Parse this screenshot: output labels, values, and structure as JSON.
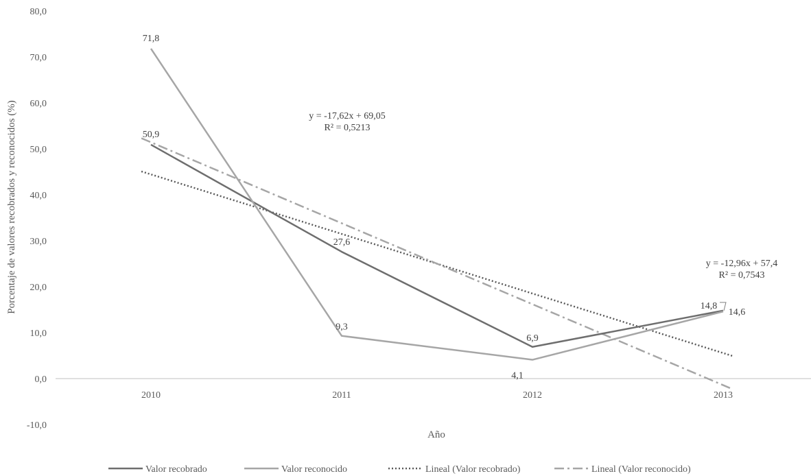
{
  "chart_data": {
    "type": "line",
    "title": "",
    "xlabel": "Año",
    "ylabel": "Porcentaje de valores recobrados y reconocidos (%)",
    "categories": [
      "2010",
      "2011",
      "2012",
      "2013"
    ],
    "ylim": [
      -10,
      80
    ],
    "ytick_step": 10,
    "ytick_labels": [
      "-10,0",
      "0,0",
      "10,0",
      "20,0",
      "30,0",
      "40,0",
      "50,0",
      "60,0",
      "70,0",
      "80,0"
    ],
    "grid": false,
    "legend_position": "bottom",
    "series": [
      {
        "name": "Valor recobrado",
        "values": [
          50.9,
          27.6,
          6.9,
          14.8
        ],
        "labels": [
          "50,9",
          "27,6",
          "6,9",
          "14,8"
        ],
        "color": "#6e6e6e",
        "style": "solid"
      },
      {
        "name": "Valor reconocido",
        "values": [
          71.8,
          9.3,
          4.1,
          14.6
        ],
        "labels": [
          "71,8",
          "9,3",
          "4,1",
          "14,6"
        ],
        "color": "#a6a6a6",
        "style": "solid"
      }
    ],
    "trendlines": [
      {
        "name": "Lineal (Valor recobrado)",
        "slope": -12.96,
        "intercept": 57.4,
        "equation": "y = -12,96x + 57,4",
        "r2": "R² = 0,7543",
        "color": "#595959",
        "style": "dotted"
      },
      {
        "name": "Lineal (Valor reconocido)",
        "slope": -17.62,
        "intercept": 69.05,
        "equation": "y = -17,62x + 69,05",
        "r2": "R² = 0,5213",
        "color": "#a6a6a6",
        "style": "dashdot"
      }
    ]
  }
}
